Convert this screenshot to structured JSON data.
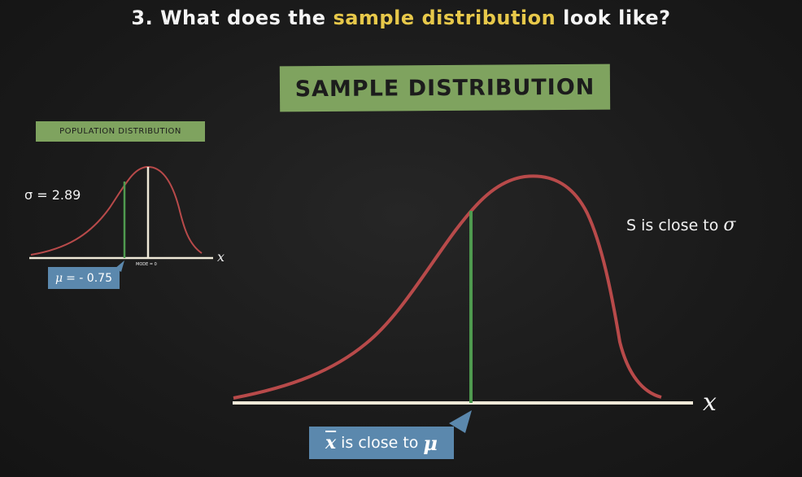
{
  "header": {
    "prefix": "3. What does the ",
    "highlight": "sample distribution",
    "suffix": " look like?"
  },
  "main_banner": "SAMPLE DISTRIBUTION",
  "small_banner": "POPULATION DISTRIBUTION",
  "population": {
    "sigma_text": "σ = 2.89",
    "mu_symbol": "μ",
    "mu_value": "= - 0.75",
    "mode_text": "MODE = 0",
    "axis_label": "x"
  },
  "sample": {
    "s_note_prefix": "S is close to ",
    "s_note_symbol": "σ",
    "xbar_symbol": "x",
    "xbar_note": "is close to",
    "mu_symbol": "μ",
    "axis_label": "x"
  },
  "colors": {
    "background": "#1c1c1c",
    "highlight": "#e7c84a",
    "banner_green": "#7fa35f",
    "tag_blue": "#5b88ad",
    "curve_red": "#b84a4a",
    "mean_line_green": "#4f9a4f",
    "axis_white": "#efe9d8"
  }
}
